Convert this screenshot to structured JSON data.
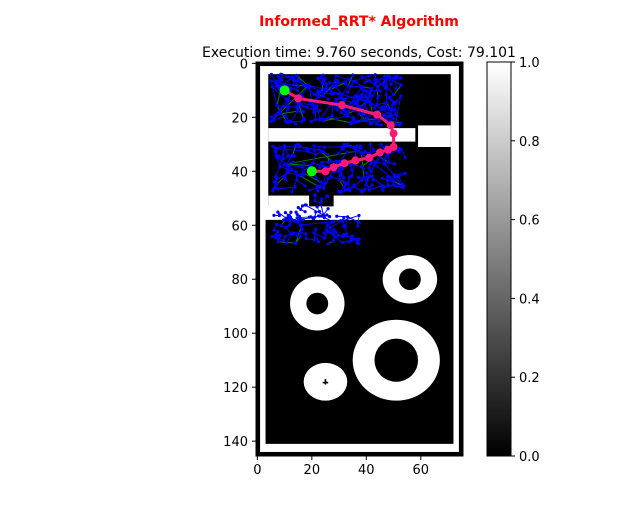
{
  "chart_data": {
    "type": "heatmap",
    "title": "Informed_RRT* Algorithm",
    "subtitle": "Execution time: 9.760 seconds, Cost: 79.101",
    "title_color": "#ff0000",
    "colormap": "gray",
    "x_ticks": [
      0,
      20,
      40,
      60
    ],
    "y_ticks": [
      0,
      20,
      40,
      60,
      80,
      100,
      120,
      140
    ],
    "xlim": [
      -0.5,
      75.5
    ],
    "ylim_inverted": [
      145.5,
      -0.5
    ],
    "colorbar_ticks": [
      0.0,
      0.2,
      0.4,
      0.6,
      0.8,
      1.0
    ],
    "colorbar_tick_labels": [
      "0.0",
      "0.2",
      "0.4",
      "0.6",
      "0.8",
      "1.0"
    ],
    "start_point": {
      "x": 10,
      "y": 10,
      "color": "#00ff00"
    },
    "goal_point": {
      "x": 20,
      "y": 40,
      "color": "#00ff00"
    },
    "path": {
      "color": "#ff1a75",
      "points": [
        [
          10,
          10
        ],
        [
          15,
          13
        ],
        [
          31,
          15.5
        ],
        [
          44,
          19
        ],
        [
          49,
          23
        ],
        [
          50,
          26
        ],
        [
          50,
          31
        ],
        [
          48,
          32
        ],
        [
          45,
          33
        ],
        [
          41,
          35
        ],
        [
          36,
          36
        ],
        [
          32,
          37
        ],
        [
          28,
          38.5
        ],
        [
          25,
          40
        ],
        [
          20,
          40
        ]
      ]
    },
    "tree_colors": {
      "edges_main": "#0000ff",
      "edges_secondary": "#008000",
      "nodes": "#0000ff"
    },
    "map": {
      "outer_free_region": {
        "x0": 1,
        "x1": 74,
        "y0": 1,
        "y1": 144
      },
      "obstacles_rects": [
        [
          4,
          4,
          71,
          53
        ],
        [
          3,
          58,
          72,
          141
        ]
      ],
      "free_corridors": [
        [
          4,
          24,
          58,
          29
        ],
        [
          59,
          23,
          71,
          31
        ],
        [
          4,
          49,
          19,
          55
        ],
        [
          28,
          49,
          73,
          57
        ]
      ],
      "rings": [
        {
          "cx": 22,
          "cy": 89,
          "rx": 10,
          "ry": 10,
          "inner": 4
        },
        {
          "cx": 56,
          "cy": 80,
          "rx": 10,
          "ry": 9,
          "inner": 4
        },
        {
          "cx": 51,
          "cy": 110,
          "rx": 16,
          "ry": 15,
          "inner": 8
        },
        {
          "cx": 25,
          "cy": 118,
          "rx": 8,
          "ry": 7,
          "inner": 0
        }
      ]
    }
  }
}
